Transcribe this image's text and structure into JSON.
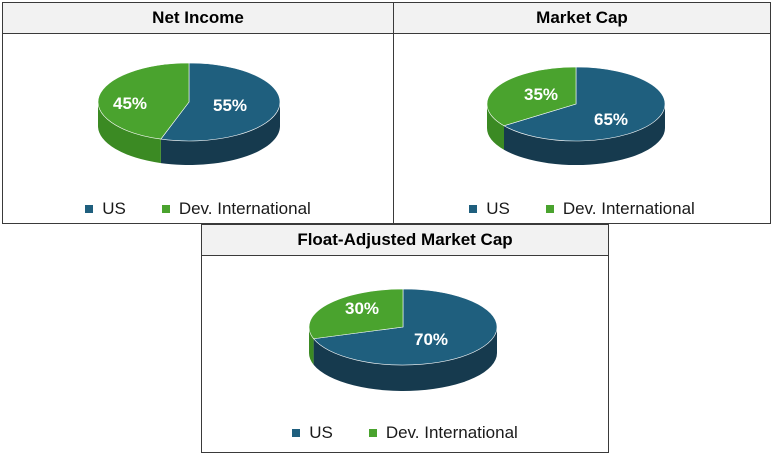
{
  "colors": {
    "us_top": "#1f5f7e",
    "us_side": "#163a4e",
    "intl_top": "#4aa32e",
    "intl_side": "#3b8a23"
  },
  "chart_data": [
    {
      "type": "pie",
      "title": "Net Income",
      "categories": [
        "US",
        "Dev. International"
      ],
      "values": [
        55,
        45
      ],
      "labels": [
        "55%",
        "45%"
      ],
      "legend": "bottom"
    },
    {
      "type": "pie",
      "title": "Market Cap",
      "categories": [
        "US",
        "Dev. International"
      ],
      "values": [
        65,
        35
      ],
      "labels": [
        "65%",
        "35%"
      ],
      "legend": "bottom"
    },
    {
      "type": "pie",
      "title": "Float-Adjusted Market Cap",
      "categories": [
        "US",
        "Dev. International"
      ],
      "values": [
        70,
        30
      ],
      "labels": [
        "70%",
        "30%"
      ],
      "legend": "bottom"
    }
  ]
}
